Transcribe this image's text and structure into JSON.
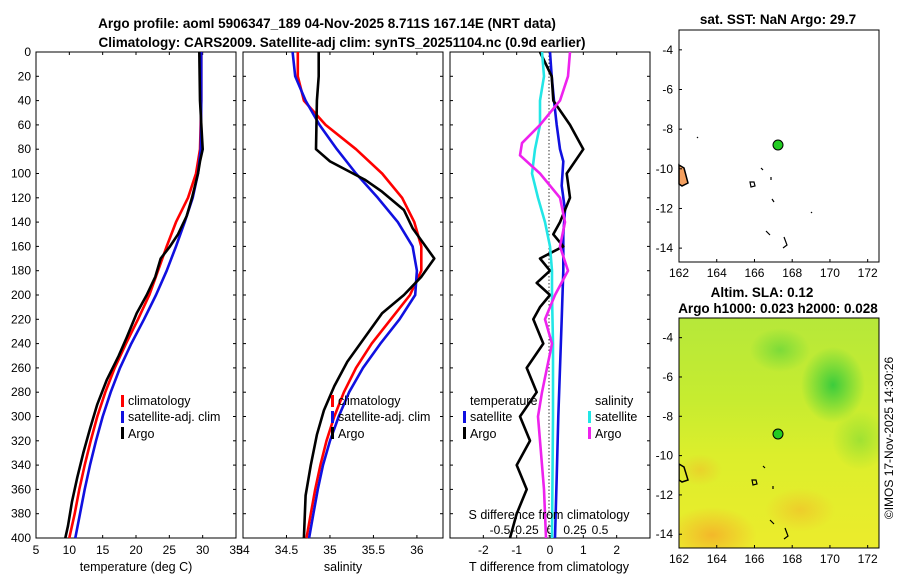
{
  "title": {
    "line1": "Argo profile: aoml 5906347_189 04-Nov-2025 8.711S 167.14E (NRT data)",
    "line2": "Climatology: CARS2009. Satellite-adj clim: synTS_20251104.nc (0.9d earlier)"
  },
  "colors": {
    "climatology": "#ff0000",
    "satellite": "#1010e0",
    "argo": "#000000",
    "sat_salinity": "#22e6e6",
    "argo_salinity": "#ee22ee"
  },
  "legend": {
    "climatology": "climatology",
    "satellite_adj": "satellite-adj. clim",
    "argo": "Argo",
    "temperature_header": "temperature",
    "salinity_header": "salinity",
    "satellite": "satellite"
  },
  "sst_map": {
    "title": "sat. SST: NaN Argo: 29.7",
    "xticks": [
      162,
      164,
      166,
      168,
      170,
      172
    ],
    "yticks": [
      -4,
      -6,
      -8,
      -10,
      -12,
      -14
    ]
  },
  "sla_map": {
    "title1": "Altim. SLA: 0.12",
    "title2": "Argo h1000: 0.023 h2000: 0.028",
    "xticks": [
      162,
      164,
      166,
      168,
      170,
      172
    ],
    "yticks": [
      -4,
      -6,
      -8,
      -10,
      -12,
      -14
    ]
  },
  "watermark": "©IMOS 17-Nov-2025 14:30:26",
  "chart_data": [
    {
      "type": "line",
      "title": "",
      "xlabel": "temperature (deg C)",
      "ylabel": "",
      "xlim": [
        5,
        35
      ],
      "ylim": [
        400,
        0
      ],
      "xticks": [
        5,
        10,
        15,
        20,
        25,
        30,
        35
      ],
      "yticks": [
        0,
        20,
        40,
        60,
        80,
        100,
        120,
        140,
        160,
        180,
        200,
        220,
        240,
        260,
        280,
        300,
        320,
        340,
        360,
        380,
        400
      ],
      "series": [
        {
          "name": "climatology",
          "color": "#ff0000",
          "points": [
            [
              29.8,
              0
            ],
            [
              29.8,
              40
            ],
            [
              29.6,
              80
            ],
            [
              29.0,
              100
            ],
            [
              27.8,
              120
            ],
            [
              26.0,
              140
            ],
            [
              24.6,
              160
            ],
            [
              23.3,
              180
            ],
            [
              22.0,
              200
            ],
            [
              20.3,
              220
            ],
            [
              18.5,
              240
            ],
            [
              16.8,
              260
            ],
            [
              15.4,
              280
            ],
            [
              14.2,
              300
            ],
            [
              13.2,
              320
            ],
            [
              12.3,
              340
            ],
            [
              11.5,
              360
            ],
            [
              10.8,
              380
            ],
            [
              10.0,
              400
            ]
          ]
        },
        {
          "name": "satellite-adj. clim",
          "color": "#1010e0",
          "points": [
            [
              29.8,
              0
            ],
            [
              29.8,
              40
            ],
            [
              29.7,
              80
            ],
            [
              29.3,
              100
            ],
            [
              28.5,
              120
            ],
            [
              27.3,
              140
            ],
            [
              26.0,
              160
            ],
            [
              24.6,
              180
            ],
            [
              23.0,
              200
            ],
            [
              21.2,
              220
            ],
            [
              19.3,
              240
            ],
            [
              17.6,
              260
            ],
            [
              16.2,
              280
            ],
            [
              15.0,
              300
            ],
            [
              14.0,
              320
            ],
            [
              13.1,
              340
            ],
            [
              12.3,
              360
            ],
            [
              11.6,
              380
            ],
            [
              10.9,
              400
            ]
          ]
        },
        {
          "name": "Argo",
          "color": "#000000",
          "points": [
            [
              29.5,
              0
            ],
            [
              29.6,
              40
            ],
            [
              29.9,
              70
            ],
            [
              30.0,
              80
            ],
            [
              29.6,
              90
            ],
            [
              29.3,
              100
            ],
            [
              28.4,
              120
            ],
            [
              27.6,
              135
            ],
            [
              26.3,
              150
            ],
            [
              25.1,
              160
            ],
            [
              23.7,
              170
            ],
            [
              22.9,
              185
            ],
            [
              21.6,
              200
            ],
            [
              20.1,
              215
            ],
            [
              18.6,
              235
            ],
            [
              17.4,
              250
            ],
            [
              15.6,
              270
            ],
            [
              14.2,
              290
            ],
            [
              13.1,
              310
            ],
            [
              12.1,
              330
            ],
            [
              11.2,
              350
            ],
            [
              10.4,
              370
            ],
            [
              9.8,
              390
            ],
            [
              9.4,
              400
            ]
          ]
        }
      ]
    },
    {
      "type": "line",
      "title": "",
      "xlabel": "salinity",
      "ylabel": "",
      "xlim": [
        34,
        36.3
      ],
      "ylim": [
        400,
        0
      ],
      "xticks": [
        34,
        34.5,
        35,
        35.5,
        36
      ],
      "series": [
        {
          "name": "climatology",
          "color": "#ff0000",
          "points": [
            [
              34.63,
              0
            ],
            [
              34.63,
              20
            ],
            [
              34.7,
              40
            ],
            [
              34.95,
              60
            ],
            [
              35.3,
              80
            ],
            [
              35.6,
              100
            ],
            [
              35.83,
              120
            ],
            [
              35.97,
              140
            ],
            [
              36.05,
              160
            ],
            [
              36.05,
              180
            ],
            [
              35.92,
              200
            ],
            [
              35.7,
              220
            ],
            [
              35.48,
              240
            ],
            [
              35.3,
              260
            ],
            [
              35.16,
              280
            ],
            [
              35.05,
              300
            ],
            [
              34.96,
              320
            ],
            [
              34.89,
              340
            ],
            [
              34.83,
              360
            ],
            [
              34.78,
              380
            ],
            [
              34.73,
              400
            ]
          ]
        },
        {
          "name": "satellite-adj. clim",
          "color": "#1010e0",
          "points": [
            [
              34.57,
              0
            ],
            [
              34.6,
              20
            ],
            [
              34.72,
              40
            ],
            [
              34.88,
              60
            ],
            [
              35.08,
              80
            ],
            [
              35.3,
              100
            ],
            [
              35.55,
              120
            ],
            [
              35.78,
              140
            ],
            [
              35.95,
              160
            ],
            [
              36.0,
              180
            ],
            [
              35.98,
              200
            ],
            [
              35.8,
              220
            ],
            [
              35.58,
              240
            ],
            [
              35.38,
              260
            ],
            [
              35.22,
              280
            ],
            [
              35.1,
              300
            ],
            [
              35.0,
              320
            ],
            [
              34.92,
              340
            ],
            [
              34.86,
              360
            ],
            [
              34.81,
              380
            ],
            [
              34.76,
              400
            ]
          ]
        },
        {
          "name": "Argo",
          "color": "#000000",
          "points": [
            [
              34.87,
              0
            ],
            [
              34.87,
              20
            ],
            [
              34.85,
              40
            ],
            [
              34.84,
              80
            ],
            [
              35.0,
              90
            ],
            [
              35.4,
              105
            ],
            [
              35.6,
              115
            ],
            [
              35.85,
              130
            ],
            [
              35.95,
              145
            ],
            [
              36.1,
              160
            ],
            [
              36.2,
              170
            ],
            [
              36.05,
              185
            ],
            [
              35.85,
              200
            ],
            [
              35.6,
              215
            ],
            [
              35.4,
              235
            ],
            [
              35.2,
              255
            ],
            [
              35.05,
              275
            ],
            [
              34.93,
              295
            ],
            [
              34.85,
              315
            ],
            [
              34.78,
              340
            ],
            [
              34.72,
              365
            ],
            [
              34.7,
              400
            ]
          ]
        }
      ]
    },
    {
      "type": "line",
      "title": "",
      "xlabel": "T difference from climatology",
      "x2label": "S difference from climatology",
      "ylabel": "",
      "xlim": [
        -3,
        3
      ],
      "x2lim": [
        -1,
        1
      ],
      "ylim": [
        400,
        0
      ],
      "xticks": [
        -2,
        -1,
        0,
        1,
        2
      ],
      "x2ticks": [
        "-0.5",
        "-0.25",
        "0",
        "0.25",
        "0.5"
      ],
      "series": [
        {
          "name": "temperature satellite",
          "axis": "T",
          "color": "#1010e0",
          "points": [
            [
              0,
              0
            ],
            [
              0.05,
              20
            ],
            [
              0.12,
              40
            ],
            [
              0.2,
              60
            ],
            [
              0.3,
              80
            ],
            [
              0.4,
              90
            ],
            [
              0.35,
              110
            ],
            [
              0.45,
              130
            ],
            [
              0.4,
              150
            ],
            [
              0.4,
              180
            ],
            [
              0.35,
              220
            ],
            [
              0.3,
              260
            ],
            [
              0.25,
              300
            ],
            [
              0.2,
              350
            ],
            [
              0.15,
              400
            ]
          ]
        },
        {
          "name": "temperature Argo",
          "axis": "T",
          "color": "#000000",
          "points": [
            [
              -0.3,
              0
            ],
            [
              0.05,
              20
            ],
            [
              0.1,
              40
            ],
            [
              0.6,
              60
            ],
            [
              1.0,
              80
            ],
            [
              0.5,
              100
            ],
            [
              0.6,
              120
            ],
            [
              0.3,
              140
            ],
            [
              0.1,
              150
            ],
            [
              0.4,
              160
            ],
            [
              -0.3,
              170
            ],
            [
              0,
              180
            ],
            [
              -0.4,
              190
            ],
            [
              0,
              200
            ],
            [
              -0.3,
              210
            ],
            [
              -0.5,
              220
            ],
            [
              -0.2,
              240
            ],
            [
              -0.7,
              260
            ],
            [
              -0.4,
              280
            ],
            [
              -0.9,
              300
            ],
            [
              -0.6,
              320
            ],
            [
              -1.0,
              340
            ],
            [
              -0.7,
              360
            ],
            [
              -1.0,
              380
            ],
            [
              -1.2,
              400
            ]
          ]
        },
        {
          "name": "salinity satellite",
          "axis": "S",
          "color": "#22e6e6",
          "points": [
            [
              -0.08,
              0
            ],
            [
              -0.06,
              20
            ],
            [
              -0.1,
              40
            ],
            [
              -0.1,
              60
            ],
            [
              -0.15,
              80
            ],
            [
              -0.18,
              100
            ],
            [
              -0.12,
              120
            ],
            [
              -0.05,
              140
            ],
            [
              0,
              160
            ],
            [
              0.02,
              180
            ],
            [
              0.02,
              200
            ],
            [
              0.03,
              240
            ],
            [
              0.03,
              300
            ],
            [
              0.02,
              400
            ]
          ]
        },
        {
          "name": "salinity Argo",
          "axis": "S",
          "color": "#ee22ee",
          "points": [
            [
              0.2,
              0
            ],
            [
              0.18,
              20
            ],
            [
              0.1,
              40
            ],
            [
              -0.1,
              60
            ],
            [
              -0.28,
              75
            ],
            [
              -0.3,
              85
            ],
            [
              -0.1,
              100
            ],
            [
              0.1,
              120
            ],
            [
              0.15,
              140
            ],
            [
              0.1,
              160
            ],
            [
              0.18,
              180
            ],
            [
              0.05,
              200
            ],
            [
              -0.05,
              220
            ],
            [
              0.02,
              240
            ],
            [
              -0.08,
              280
            ],
            [
              -0.12,
              300
            ],
            [
              -0.1,
              320
            ],
            [
              -0.08,
              340
            ],
            [
              -0.06,
              360
            ],
            [
              -0.04,
              400
            ]
          ]
        }
      ]
    }
  ]
}
